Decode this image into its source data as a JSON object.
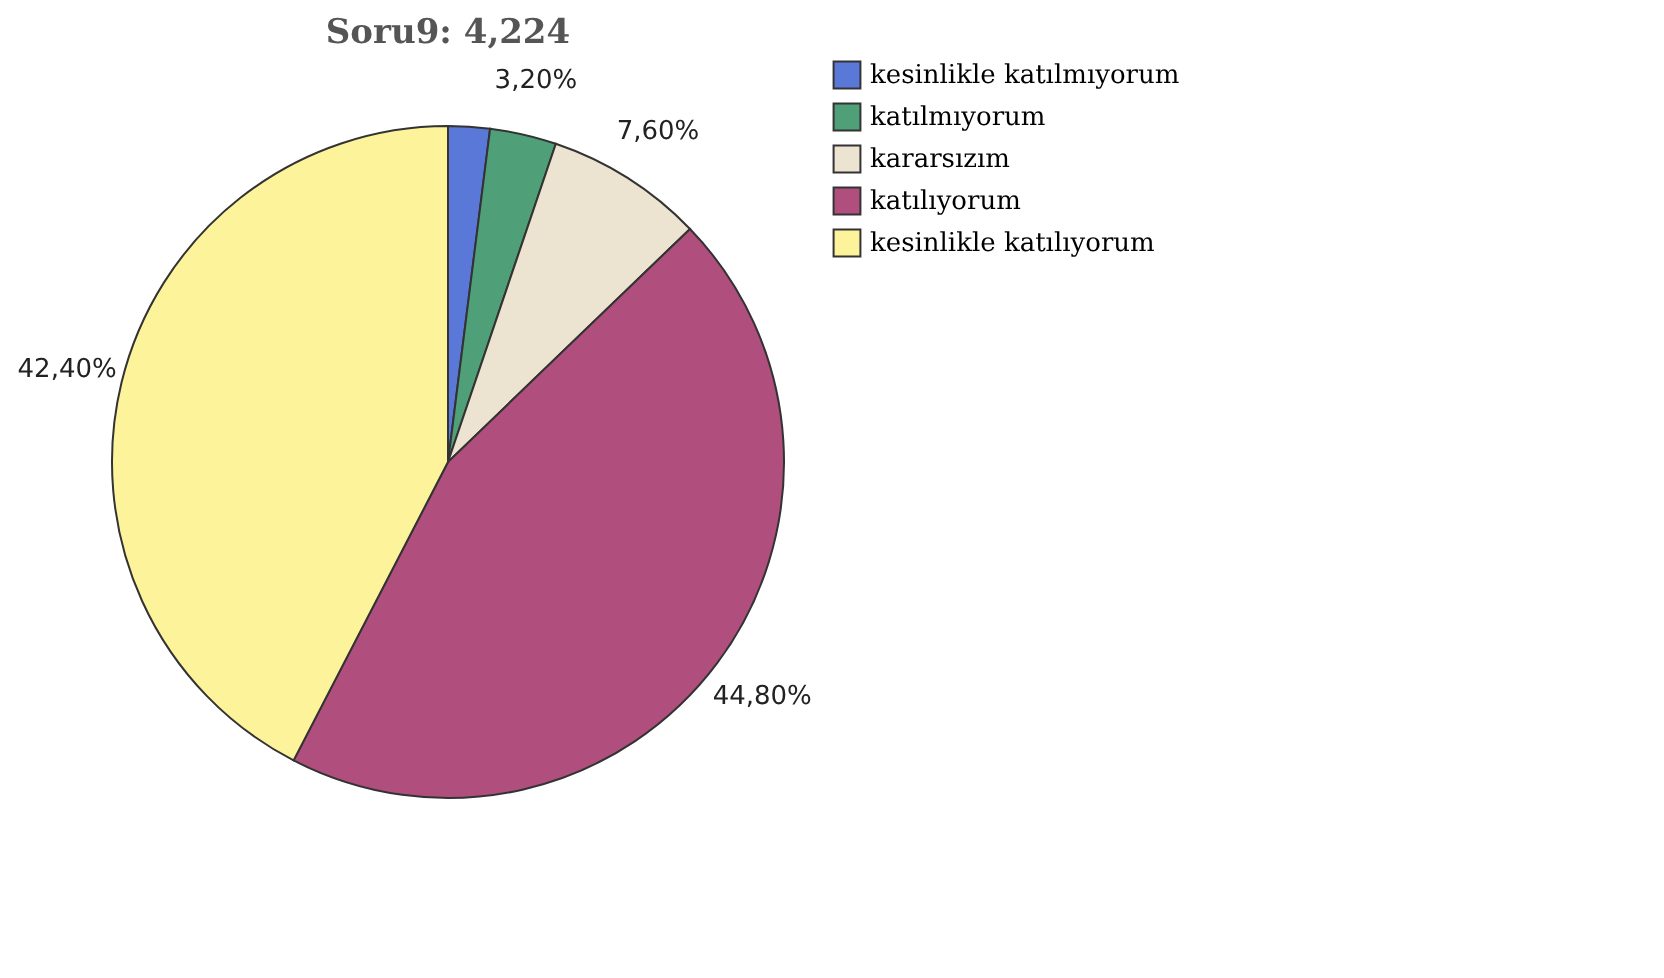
{
  "chart_data": {
    "type": "pie",
    "title": "Soru9: 4,224",
    "categories": [
      "kesinlikle katılmıyorum",
      "katılmıyorum",
      "kararsızım",
      "katılıyorum",
      "kesinlikle katılıyorum"
    ],
    "values": [
      2.0,
      3.2,
      7.6,
      44.8,
      42.4
    ],
    "value_labels": [
      null,
      "3,20%",
      "7,60%",
      "44,80%",
      "42,40%"
    ],
    "colors": [
      "#5a78d8",
      "#4fa079",
      "#ece3d0",
      "#b04f7e",
      "#fdf39b"
    ],
    "legend": "top right"
  }
}
